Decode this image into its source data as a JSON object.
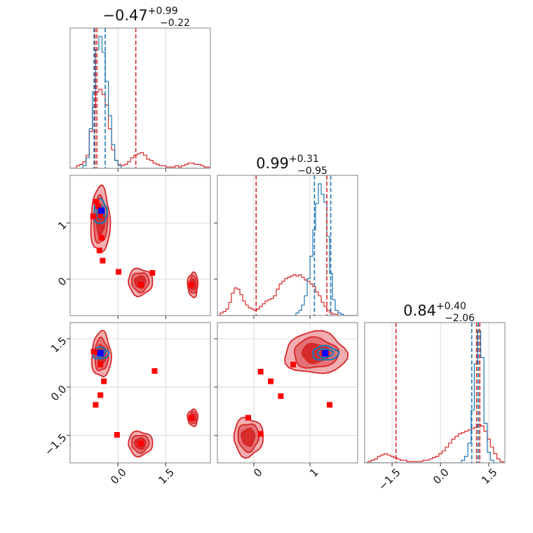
{
  "chart_data": {
    "type": "corner",
    "colors": {
      "red": "#d62728",
      "blue": "#1f77b4",
      "red_marker": "#ff0000",
      "blue_marker": "#0000ff",
      "red_fill": "#f0a0a3",
      "red_fill_dark": "#d62728"
    },
    "grid": true,
    "titles": [
      {
        "main": "−0.47",
        "sup": "+0.99",
        "sub": "−0.22"
      },
      {
        "main": "0.99",
        "sup": "+0.31",
        "sub": "−0.95"
      },
      {
        "main": "0.84",
        "sup": "+0.40",
        "sub": "−2.06"
      }
    ],
    "x_ticks": [
      {
        "labels": [
          "0.0",
          "1.5"
        ],
        "values": [
          0.0,
          1.5
        ]
      },
      {
        "labels": [
          "0",
          "1"
        ],
        "values": [
          0,
          1
        ]
      },
      {
        "labels": [
          "−1.5",
          "0.0",
          "1.5"
        ],
        "values": [
          -1.5,
          0.0,
          1.5
        ]
      }
    ],
    "y_ticks": [
      {
        "row": 1,
        "labels": [
          "0",
          "1"
        ],
        "values": [
          0,
          1
        ]
      },
      {
        "row": 2,
        "labels": [
          "−1.5",
          "0.0",
          "1.5"
        ],
        "values": [
          -1.5,
          0.0,
          1.5
        ]
      }
    ],
    "ranges": {
      "p0": [
        -1.5,
        2.9
      ],
      "p1": [
        -0.65,
        1.85
      ],
      "p2": [
        -2.35,
        2.0
      ]
    },
    "quantile_lines": {
      "red": {
        "p0": [
          -0.72,
          -0.66,
          0.56
        ],
        "p1": [
          0.04,
          1.3
        ],
        "p2": [
          -1.38,
          1.12,
          1.22
        ]
      },
      "blue": {
        "p0": [
          -0.75,
          -0.4
        ],
        "p1": [
          1.08,
          1.37
        ],
        "p2": [
          0.97,
          1.17
        ]
      }
    },
    "histograms": {
      "p0": {
        "edges_start": -1.5,
        "edge_step": 0.1,
        "blue": [
          0,
          0,
          0,
          0,
          0.02,
          0.08,
          0.3,
          0.58,
          0.9,
          1.0,
          0.88,
          0.66,
          0.4,
          0.18,
          0.06,
          0.02,
          0,
          0,
          0,
          0,
          0,
          0,
          0,
          0,
          0,
          0,
          0,
          0,
          0,
          0,
          0,
          0,
          0,
          0,
          0,
          0,
          0,
          0,
          0,
          0,
          0,
          0,
          0,
          0
        ],
        "red": [
          0,
          0,
          0.02,
          0.03,
          0.05,
          0.1,
          0.28,
          0.46,
          0.58,
          0.6,
          0.56,
          0.48,
          0.3,
          0.14,
          0.06,
          0.03,
          0.02,
          0.03,
          0.05,
          0.08,
          0.1,
          0.11,
          0.12,
          0.1,
          0.07,
          0.06,
          0.04,
          0.03,
          0.02,
          0.02,
          0.01,
          0.01,
          0.01,
          0.02,
          0.01,
          0.02,
          0.03,
          0.04,
          0.04,
          0.03,
          0.03,
          0.02,
          0.01,
          0.01
        ]
      },
      "p1": {
        "edges_start": -0.65,
        "edge_step": 0.05,
        "blue": [
          0,
          0,
          0,
          0,
          0,
          0,
          0,
          0,
          0,
          0,
          0,
          0,
          0,
          0,
          0,
          0,
          0,
          0,
          0,
          0,
          0,
          0,
          0,
          0,
          0,
          0,
          0,
          0,
          0.02,
          0.04,
          0.08,
          0.15,
          0.28,
          0.45,
          0.65,
          0.85,
          1.0,
          0.92,
          0.86,
          0.6,
          0.32,
          0.12,
          0.04,
          0.02,
          0.01,
          0,
          0,
          0,
          0,
          0
        ],
        "red": [
          0,
          0.02,
          0.03,
          0.05,
          0.1,
          0.17,
          0.21,
          0.2,
          0.16,
          0.11,
          0.08,
          0.06,
          0.05,
          0.04,
          0.05,
          0.07,
          0.09,
          0.11,
          0.12,
          0.13,
          0.15,
          0.2,
          0.24,
          0.26,
          0.28,
          0.29,
          0.3,
          0.31,
          0.3,
          0.31,
          0.29,
          0.27,
          0.26,
          0.24,
          0.22,
          0.18,
          0.15,
          0.1,
          0.07,
          0.04,
          0.02,
          0.01,
          0.01,
          0,
          0,
          0,
          0,
          0,
          0,
          0
        ]
      },
      "p2": {
        "edges_start": -2.35,
        "edge_step": 0.1,
        "blue": [
          0,
          0,
          0,
          0,
          0,
          0,
          0,
          0,
          0,
          0,
          0,
          0,
          0,
          0,
          0,
          0,
          0,
          0,
          0,
          0,
          0,
          0,
          0,
          0,
          0,
          0,
          0,
          0,
          0,
          0,
          0.02,
          0.05,
          0.15,
          0.4,
          0.75,
          1.0,
          0.8,
          0.3,
          0.08,
          0.02,
          0,
          0,
          0,
          0
        ],
        "red": [
          0,
          0.01,
          0.02,
          0.03,
          0.05,
          0.06,
          0.07,
          0.06,
          0.05,
          0.04,
          0.03,
          0.02,
          0.02,
          0.01,
          0.01,
          0.01,
          0.01,
          0.01,
          0.02,
          0.02,
          0.03,
          0.04,
          0.05,
          0.07,
          0.09,
          0.12,
          0.15,
          0.18,
          0.2,
          0.22,
          0.23,
          0.24,
          0.25,
          0.26,
          0.27,
          0.29,
          0.28,
          0.24,
          0.18,
          0.12,
          0.07,
          0.03,
          0.01,
          0
        ]
      }
    },
    "contours_2d": {
      "p1_vs_p0": {
        "red": [
          {
            "cx": -0.55,
            "cy": 1.05,
            "rx": 0.3,
            "ry": 0.58
          },
          {
            "cx": 0.7,
            "cy": -0.05,
            "rx": 0.38,
            "ry": 0.24
          },
          {
            "cx": 2.35,
            "cy": -0.1,
            "rx": 0.16,
            "ry": 0.22
          }
        ],
        "blue": [
          {
            "cx": -0.55,
            "cy": 1.2,
            "rx": 0.2,
            "ry": 0.22
          }
        ]
      },
      "p2_vs_p0": {
        "red": [
          {
            "cx": -0.52,
            "cy": 1.0,
            "rx": 0.3,
            "ry": 0.7
          },
          {
            "cx": 0.7,
            "cy": -1.75,
            "rx": 0.38,
            "ry": 0.38
          },
          {
            "cx": 2.35,
            "cy": -0.95,
            "rx": 0.16,
            "ry": 0.26
          }
        ],
        "blue": [
          {
            "cx": -0.55,
            "cy": 1.05,
            "rx": 0.25,
            "ry": 0.18
          }
        ]
      },
      "p2_vs_p1": {
        "red": [
          {
            "cx": 1.1,
            "cy": 1.05,
            "rx": 0.55,
            "ry": 0.65
          },
          {
            "cx": -0.1,
            "cy": -1.55,
            "rx": 0.26,
            "ry": 0.6
          }
        ],
        "blue": [
          {
            "cx": 1.27,
            "cy": 1.05,
            "rx": 0.23,
            "ry": 0.22
          }
        ]
      }
    },
    "markers": {
      "p1_vs_p0": {
        "red": [
          [
            -0.68,
            1.38
          ],
          [
            -0.78,
            1.12
          ],
          [
            -0.62,
            1.3
          ],
          [
            -0.55,
            1.13
          ],
          [
            -0.52,
            0.74
          ],
          [
            -0.58,
            0.51
          ],
          [
            -0.48,
            0.33
          ],
          [
            0.02,
            0.13
          ],
          [
            1.08,
            0.11
          ],
          [
            0.72,
            -0.1
          ],
          [
            2.3,
            -0.1
          ]
        ],
        "blue": [
          [
            -0.52,
            1.22
          ]
        ]
      },
      "p2_vs_p0": {
        "red": [
          [
            -0.76,
            1.1
          ],
          [
            -0.62,
            1.08
          ],
          [
            -0.55,
            0.7
          ],
          [
            -0.44,
            0.18
          ],
          [
            -0.55,
            -0.25
          ],
          [
            -0.7,
            -0.55
          ],
          [
            1.15,
            0.5
          ],
          [
            -0.03,
            -1.48
          ],
          [
            0.72,
            -1.75
          ],
          [
            2.3,
            -0.95
          ]
        ],
        "blue": [
          [
            -0.55,
            1.05
          ]
        ]
      },
      "p2_vs_p1": {
        "red": [
          [
            0.12,
            0.48
          ],
          [
            0.3,
            0.18
          ],
          [
            0.7,
            0.7
          ],
          [
            0.48,
            -0.28
          ],
          [
            1.35,
            -0.55
          ],
          [
            -0.1,
            -0.95
          ],
          [
            0.12,
            -1.45
          ]
        ],
        "blue": [
          [
            1.27,
            1.05
          ]
        ]
      }
    }
  }
}
